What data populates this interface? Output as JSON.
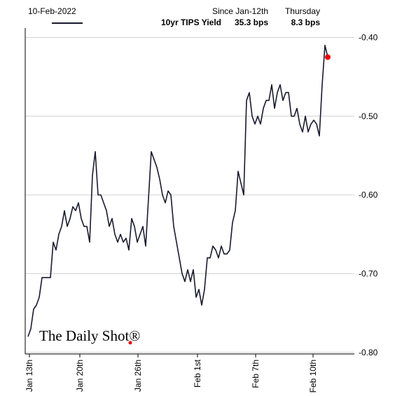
{
  "chart_data": {
    "type": "line",
    "date": "10-Feb-2022",
    "header_columns": [
      "Since Jan-12th",
      "Thursday"
    ],
    "header_values": [
      "35.3 bps",
      "8.3 bps"
    ],
    "watermark": "The Daily Shot®",
    "x": [
      1,
      2,
      3,
      4,
      5,
      6,
      7,
      8,
      9,
      10,
      11,
      12,
      13,
      14,
      15,
      16,
      17,
      18,
      19,
      20,
      21,
      22,
      23,
      24,
      25,
      26,
      27,
      28,
      29,
      30,
      31,
      32,
      33,
      34,
      35,
      36,
      37,
      38,
      39,
      40,
      41,
      42,
      43,
      44,
      45,
      46,
      47,
      48,
      49,
      50,
      51,
      52,
      53,
      54,
      55,
      56,
      57,
      58,
      59,
      60,
      61,
      62,
      63,
      64,
      65,
      66,
      67,
      68,
      69,
      70,
      71,
      72,
      73,
      74,
      75,
      76,
      77,
      78,
      79,
      80,
      81,
      82,
      83,
      84,
      85,
      86,
      87,
      88,
      89,
      90,
      91,
      92,
      93,
      94,
      95,
      96,
      97,
      98,
      99,
      100,
      101,
      102,
      103,
      104,
      105,
      106,
      107,
      108
    ],
    "series": [
      {
        "name": "10yr TIPS Yield",
        "color": "#1a1a2e",
        "values": [
          -0.78,
          -0.77,
          -0.745,
          -0.74,
          -0.73,
          -0.705,
          -0.705,
          -0.705,
          -0.705,
          -0.66,
          -0.67,
          -0.65,
          -0.64,
          -0.62,
          -0.64,
          -0.63,
          -0.615,
          -0.62,
          -0.61,
          -0.63,
          -0.64,
          -0.64,
          -0.66,
          -0.575,
          -0.545,
          -0.6,
          -0.6,
          -0.61,
          -0.62,
          -0.64,
          -0.63,
          -0.65,
          -0.66,
          -0.65,
          -0.66,
          -0.655,
          -0.67,
          -0.63,
          -0.64,
          -0.66,
          -0.65,
          -0.64,
          -0.665,
          -0.605,
          -0.545,
          -0.555,
          -0.565,
          -0.58,
          -0.6,
          -0.61,
          -0.595,
          -0.6,
          -0.64,
          -0.66,
          -0.68,
          -0.7,
          -0.71,
          -0.695,
          -0.71,
          -0.695,
          -0.73,
          -0.72,
          -0.74,
          -0.72,
          -0.68,
          -0.68,
          -0.665,
          -0.67,
          -0.68,
          -0.665,
          -0.675,
          -0.675,
          -0.67,
          -0.635,
          -0.62,
          -0.57,
          -0.585,
          -0.6,
          -0.48,
          -0.47,
          -0.5,
          -0.51,
          -0.5,
          -0.51,
          -0.49,
          -0.48,
          -0.48,
          -0.46,
          -0.49,
          -0.47,
          -0.46,
          -0.48,
          -0.47,
          -0.47,
          -0.5,
          -0.5,
          -0.49,
          -0.51,
          -0.52,
          -0.5,
          -0.52,
          -0.51,
          -0.505,
          -0.51,
          -0.525,
          -0.46,
          -0.41,
          -0.425
        ]
      }
    ],
    "end_marker_color": "#e8000b",
    "xlim": [
      0,
      117.5
    ],
    "xticks": [
      {
        "value": 1.5,
        "label": "Jan 13th"
      },
      {
        "value": 19.5,
        "label": "Jan 20th"
      },
      {
        "value": 40.25,
        "label": "Jan 26th"
      },
      {
        "value": 61.5,
        "label": "Feb 1st"
      },
      {
        "value": 82.25,
        "label": "Feb 7th"
      },
      {
        "value": 102.75,
        "label": "Feb 10th"
      }
    ],
    "ylim": [
      -0.802,
      -0.388
    ],
    "yticks": [
      {
        "value": -0.8,
        "label": "-0.80"
      },
      {
        "value": -0.7,
        "label": "-0.70"
      },
      {
        "value": -0.6,
        "label": "-0.60"
      },
      {
        "value": -0.5,
        "label": "-0.50"
      },
      {
        "value": -0.4,
        "label": "-0.40"
      }
    ],
    "grid": true
  }
}
